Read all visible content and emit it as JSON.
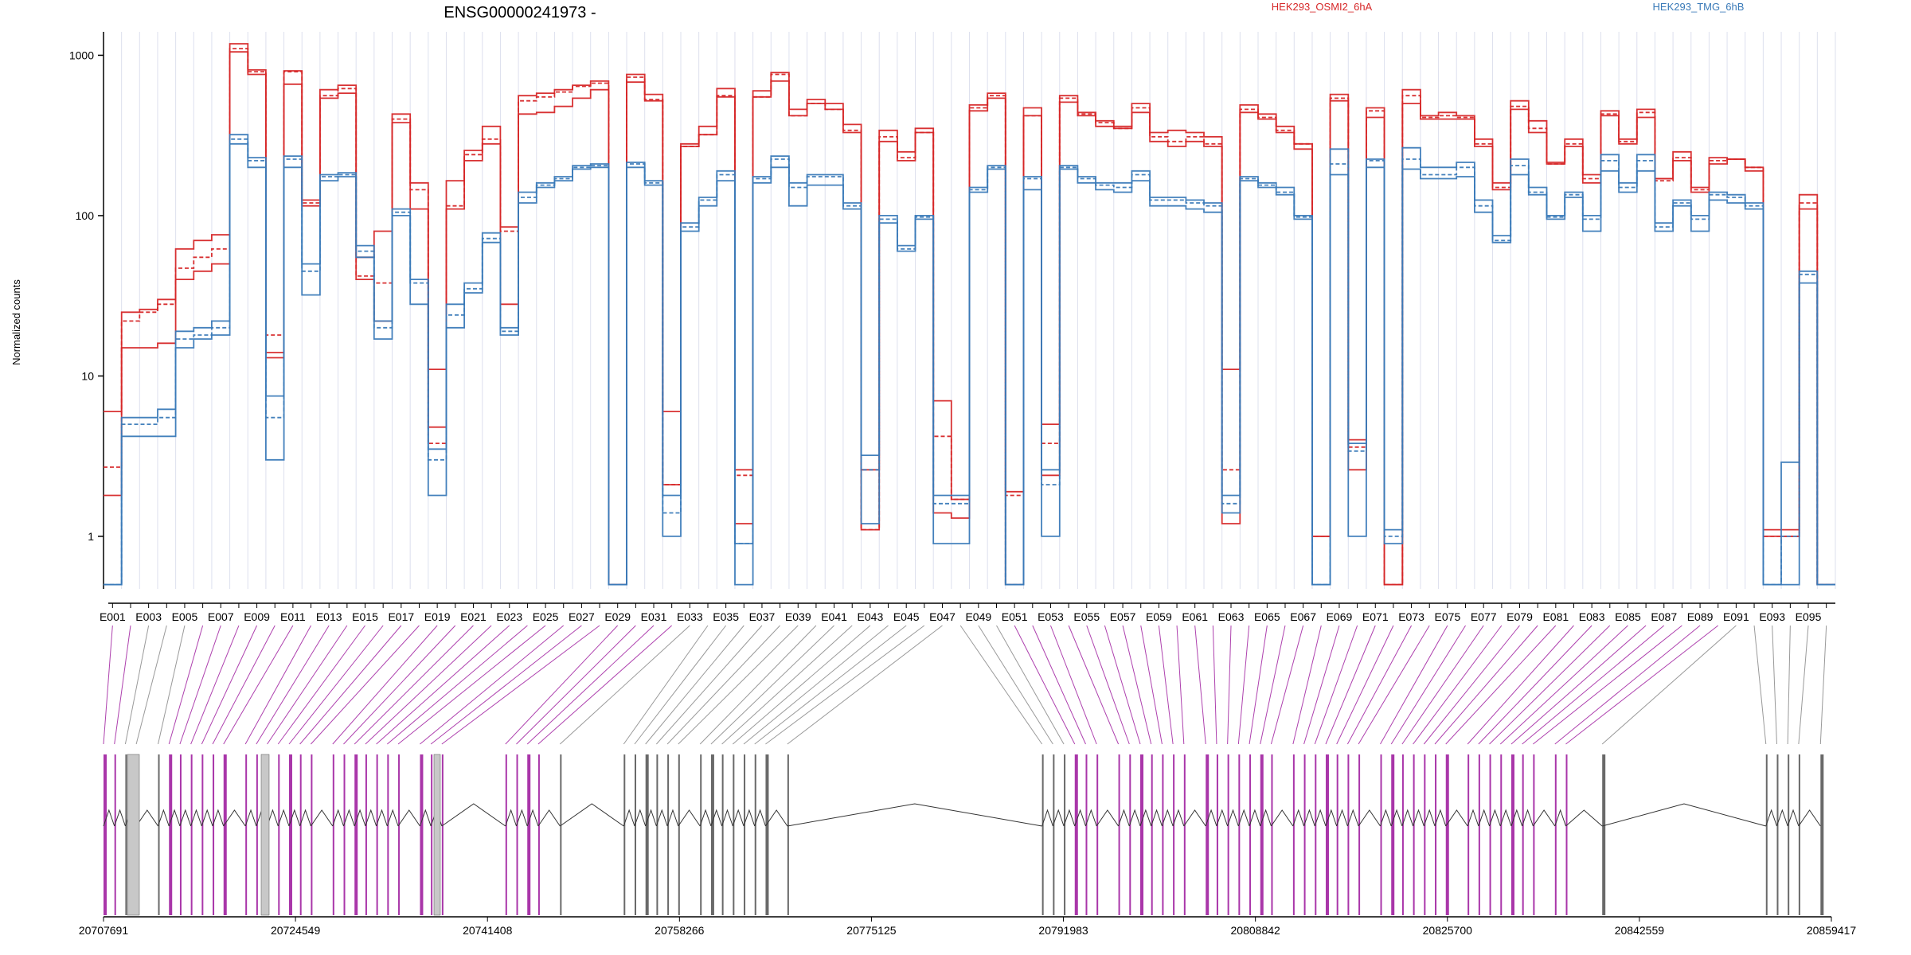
{
  "title": "ENSG00000241973 -",
  "legend": [
    {
      "name": "HEK293_OSMI2_6hA",
      "color": "#d62728"
    },
    {
      "name": "HEK293_TMG_6hB",
      "color": "#3a7ab8"
    }
  ],
  "colors": {
    "osmi": "#d62728",
    "tmg": "#3a7ab8",
    "highlight": "#a020a0",
    "gray_exon": "#c8c8c8"
  },
  "chart_data": {
    "type": "line",
    "title": "ENSG00000241973 -",
    "ylabel": "Normalized counts",
    "yscale": "log",
    "ylim": [
      0.47,
      1400
    ],
    "yticks": [
      1,
      10,
      100,
      1000
    ],
    "ytick_labels": [
      "1",
      "10",
      "100",
      "1000"
    ],
    "grid": "vertical",
    "legend": "top",
    "exon_labels": [
      "E001",
      "E003",
      "E005",
      "E007",
      "E009",
      "E011",
      "E013",
      "E015",
      "E017",
      "E019",
      "E021",
      "E023",
      "E025",
      "E027",
      "E029",
      "E031",
      "E033",
      "E035",
      "E037",
      "E039",
      "E041",
      "E043",
      "E045",
      "E047",
      "E049",
      "E051",
      "E053",
      "E055",
      "E057",
      "E059",
      "E061",
      "E063",
      "E065",
      "E067",
      "E069",
      "E071",
      "E073",
      "E075",
      "E077",
      "E079",
      "E081",
      "E083",
      "E085",
      "E087",
      "E089",
      "E091",
      "E093",
      "E095"
    ],
    "series": [
      {
        "group": "osmi",
        "values": [
          1.8,
          25,
          26,
          30,
          62,
          70,
          76,
          1180,
          810,
          14,
          800,
          125,
          610,
          650,
          55,
          80,
          430,
          160,
          4.8,
          165,
          255,
          360,
          85,
          560,
          580,
          610,
          650,
          690,
          0.5,
          760,
          570,
          6,
          280,
          360,
          620,
          2.6,
          600,
          780,
          460,
          530,
          500,
          370,
          1.1,
          340,
          250,
          350,
          7,
          1.7,
          490,
          580,
          1.9,
          470,
          5,
          560,
          440,
          390,
          360,
          500,
          330,
          340,
          330,
          310,
          11,
          490,
          430,
          360,
          280,
          1,
          570,
          4,
          470,
          0.5,
          610,
          420,
          440,
          420,
          300,
          160,
          520,
          390,
          215,
          300,
          180,
          450,
          300,
          460,
          170,
          250,
          150,
          230,
          225,
          200,
          1.1,
          1.1,
          135,
          0.5
        ]
      },
      {
        "group": "osmi",
        "values": [
          2.7,
          22,
          25,
          28,
          47,
          55,
          62,
          1100,
          790,
          18,
          790,
          120,
          560,
          620,
          42,
          38,
          400,
          145,
          3.8,
          115,
          240,
          300,
          80,
          520,
          550,
          590,
          640,
          670,
          0.5,
          730,
          530,
          2.1,
          270,
          320,
          560,
          2.4,
          550,
          760,
          420,
          500,
          460,
          340,
          1.1,
          310,
          230,
          330,
          4.2,
          1.7,
          470,
          560,
          1.8,
          420,
          3.8,
          540,
          430,
          380,
          350,
          470,
          310,
          290,
          310,
          280,
          2.6,
          460,
          410,
          340,
          280,
          1,
          540,
          3.6,
          450,
          0.5,
          560,
          410,
          420,
          410,
          280,
          150,
          480,
          350,
          210,
          280,
          170,
          430,
          290,
          440,
          165,
          230,
          145,
          220,
          225,
          200,
          1,
          1,
          120,
          0.5
        ]
      },
      {
        "group": "osmi",
        "values": [
          6,
          15,
          15,
          16,
          40,
          45,
          50,
          1050,
          760,
          13,
          660,
          115,
          540,
          580,
          40,
          22,
          380,
          110,
          11,
          110,
          220,
          280,
          28,
          430,
          440,
          480,
          540,
          610,
          0.5,
          680,
          520,
          2.1,
          270,
          320,
          550,
          1.2,
          550,
          690,
          420,
          500,
          460,
          330,
          2.6,
          290,
          220,
          330,
          1.4,
          1.3,
          450,
          540,
          0.5,
          420,
          2.4,
          510,
          420,
          360,
          350,
          440,
          290,
          270,
          290,
          270,
          1.2,
          440,
          400,
          330,
          260,
          1,
          520,
          2.6,
          410,
          0.5,
          500,
          400,
          400,
          400,
          270,
          145,
          460,
          330,
          210,
          270,
          160,
          420,
          280,
          410,
          170,
          220,
          140,
          210,
          225,
          190,
          1,
          1,
          110,
          0.5
        ]
      },
      {
        "group": "tmg",
        "values": [
          0.5,
          5.5,
          5.5,
          6.2,
          19,
          20,
          22,
          320,
          230,
          7.5,
          235,
          50,
          180,
          185,
          65,
          22,
          110,
          40,
          3.5,
          28,
          38,
          78,
          20,
          140,
          160,
          175,
          205,
          210,
          0.5,
          215,
          165,
          1.8,
          90,
          130,
          190,
          0.9,
          175,
          235,
          160,
          180,
          180,
          120,
          3.2,
          100,
          65,
          100,
          1.8,
          1.8,
          150,
          205,
          0.5,
          175,
          2.6,
          205,
          175,
          160,
          160,
          190,
          130,
          130,
          125,
          120,
          1.8,
          175,
          160,
          150,
          100,
          0.5,
          260,
          3.8,
          225,
          1.1,
          265,
          200,
          200,
          215,
          125,
          75,
          225,
          150,
          100,
          140,
          100,
          240,
          160,
          240,
          90,
          125,
          100,
          140,
          135,
          120,
          0.5,
          2.9,
          45,
          0.5
        ]
      },
      {
        "group": "tmg",
        "values": [
          0.5,
          5,
          5,
          5.5,
          17,
          18,
          20,
          300,
          220,
          5.5,
          225,
          45,
          175,
          180,
          60,
          20,
          105,
          38,
          3,
          24,
          35,
          72,
          19,
          130,
          155,
          170,
          200,
          205,
          0.5,
          210,
          160,
          1.4,
          85,
          125,
          180,
          0.9,
          170,
          225,
          150,
          175,
          175,
          115,
          2.6,
          95,
          62,
          98,
          1.6,
          1.6,
          145,
          200,
          0.5,
          170,
          2.1,
          200,
          170,
          155,
          150,
          180,
          125,
          125,
          120,
          115,
          1.6,
          170,
          155,
          140,
          98,
          0.5,
          210,
          3.4,
          220,
          1,
          225,
          180,
          180,
          200,
          115,
          70,
          205,
          140,
          98,
          135,
          95,
          220,
          150,
          220,
          85,
          120,
          95,
          135,
          130,
          115,
          0.5,
          1,
          43,
          0.5
        ]
      },
      {
        "group": "tmg",
        "values": [
          0.5,
          4.2,
          4.2,
          4.2,
          15,
          17,
          18,
          280,
          200,
          3,
          200,
          32,
          165,
          175,
          55,
          17,
          100,
          28,
          1.8,
          20,
          33,
          68,
          18,
          120,
          150,
          165,
          195,
          200,
          0.5,
          200,
          155,
          1,
          80,
          115,
          165,
          0.5,
          160,
          200,
          115,
          155,
          155,
          110,
          1.2,
          90,
          60,
          95,
          0.9,
          0.9,
          140,
          195,
          0.5,
          145,
          1,
          195,
          160,
          145,
          140,
          165,
          115,
          115,
          110,
          105,
          1.4,
          165,
          150,
          135,
          95,
          0.5,
          180,
          1,
          200,
          0.9,
          195,
          170,
          170,
          175,
          105,
          68,
          180,
          135,
          95,
          130,
          80,
          190,
          140,
          190,
          80,
          115,
          80,
          125,
          120,
          110,
          0.5,
          0.5,
          38,
          0.5
        ]
      }
    ],
    "genomic_ticks": [
      "20707691",
      "20724549",
      "20741408",
      "20758266",
      "20775125",
      "20791983",
      "20808842",
      "20825700",
      "20842559",
      "20859417"
    ]
  }
}
